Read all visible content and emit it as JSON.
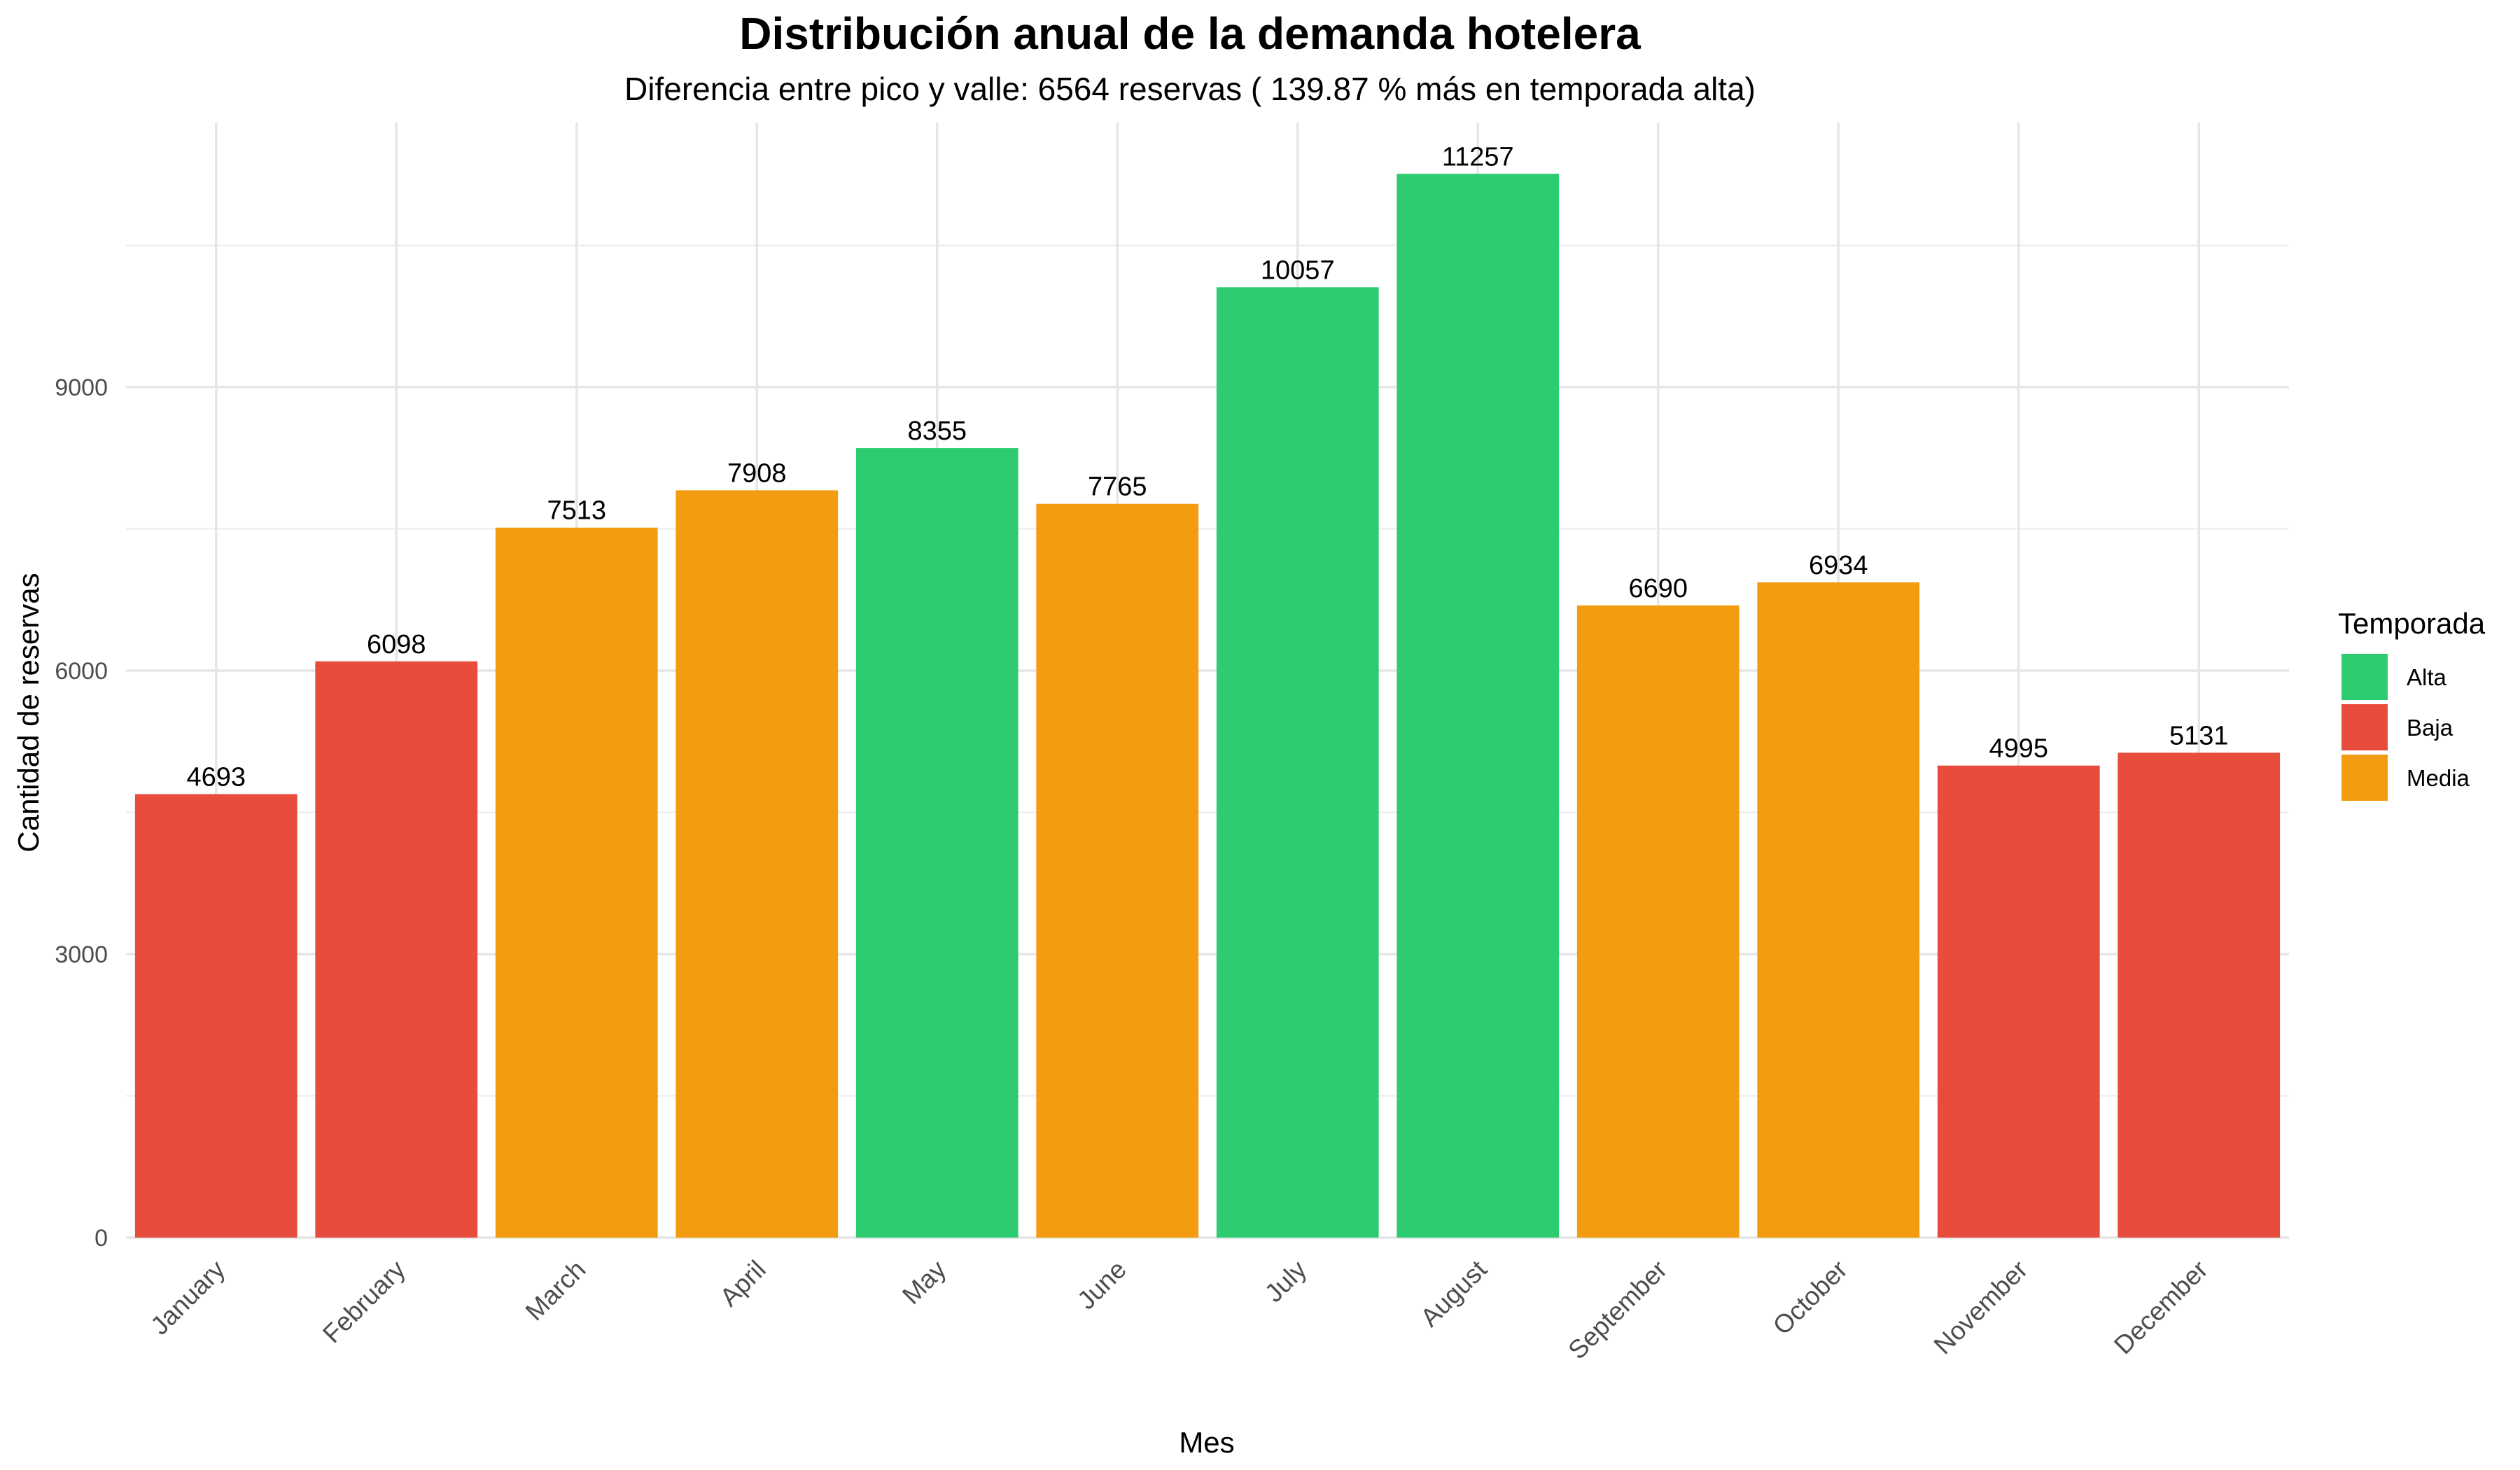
{
  "chart_data": {
    "type": "bar",
    "title": "Distribución anual de la demanda hotelera",
    "subtitle": "Diferencia entre pico y valle: 6564 reservas ( 139.87 % más en temporada alta)",
    "xlabel": "Mes",
    "ylabel": "Cantidad de reservas",
    "categories": [
      "January",
      "February",
      "March",
      "April",
      "May",
      "June",
      "July",
      "August",
      "September",
      "October",
      "November",
      "December"
    ],
    "values": [
      4693,
      6098,
      7513,
      7908,
      8355,
      7765,
      10057,
      11257,
      6690,
      6934,
      4995,
      5131
    ],
    "season": [
      "Baja",
      "Baja",
      "Media",
      "Media",
      "Alta",
      "Media",
      "Alta",
      "Alta",
      "Media",
      "Media",
      "Baja",
      "Baja"
    ],
    "ylim": [
      0,
      11800
    ],
    "yticks": [
      0,
      3000,
      6000,
      9000
    ],
    "grid": true,
    "legend": {
      "title": "Temporada",
      "position": "right",
      "entries": [
        {
          "name": "Alta",
          "color": "#2ECC71"
        },
        {
          "name": "Baja",
          "color": "#E74C3C"
        },
        {
          "name": "Media",
          "color": "#F39C12"
        }
      ]
    }
  }
}
